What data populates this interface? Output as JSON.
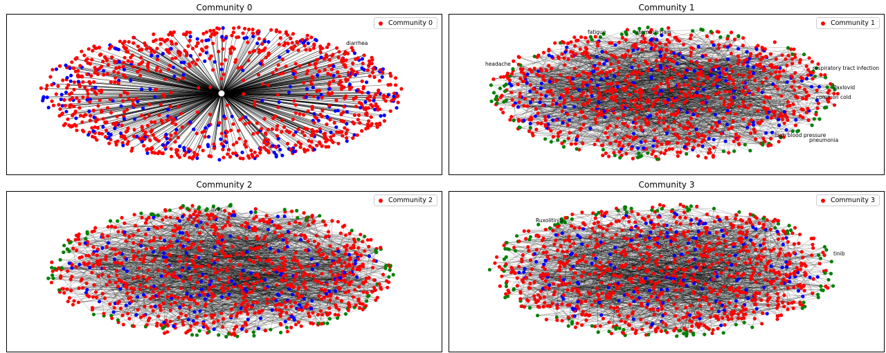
{
  "colors": {
    "community": "#ff0000",
    "secondary": "#0000ff",
    "peripheral": "#008000",
    "edge": "#000000",
    "label_node": "#800080"
  },
  "panels": [
    {
      "title": "Community 0",
      "legend": "Community 0",
      "layout": "star",
      "labels": [
        "diarrhea"
      ]
    },
    {
      "title": "Community 1",
      "legend": "Community 1",
      "layout": "mesh",
      "labels": [
        "fatigue",
        "stomach pain",
        "headache",
        "respiratory tract infection",
        "Paxlovid",
        "common cold",
        "high blood pressure",
        "pneumonia"
      ]
    },
    {
      "title": "Community 2",
      "legend": "Community 2",
      "layout": "mesh",
      "labels": [
        "liver"
      ]
    },
    {
      "title": "Community 3",
      "legend": "Community 3",
      "layout": "mesh",
      "labels": [
        "Ruxolitinib",
        "tinib"
      ]
    }
  ]
}
